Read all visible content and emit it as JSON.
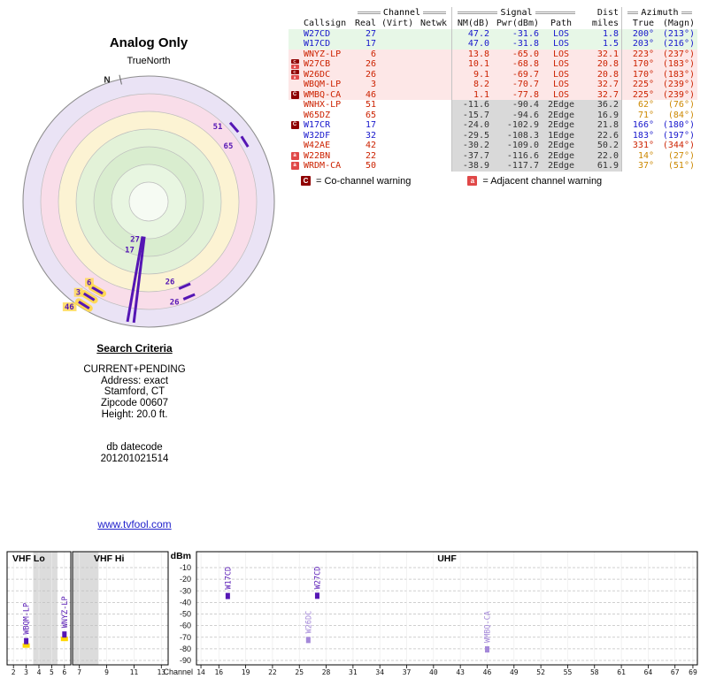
{
  "chart_data": [
    {
      "type": "radar",
      "title": "Analog Only",
      "north_label": "TrueNorth",
      "n_marker": "N",
      "declination_deg": 13,
      "tick_color": "#5516b4",
      "highlight_color": "#ffd957",
      "rings": [
        {
          "r": 142,
          "fill": "#eae3f5"
        },
        {
          "r": 122,
          "fill": "#f9dde9"
        },
        {
          "r": 102,
          "fill": "#fcf3d3"
        },
        {
          "r": 82,
          "fill": "#e3f2d8"
        },
        {
          "r": 62,
          "fill": "#d9edcf"
        },
        {
          "r": 42,
          "fill": "#e8f6e1"
        },
        {
          "r": 22,
          "fill": "#f6fbf3"
        }
      ],
      "stations": [
        {
          "label": "51",
          "az": 62,
          "kind": "tick",
          "r": 128,
          "lx": -24,
          "ly": 2,
          "highlight": false
        },
        {
          "label": "65",
          "az": 71,
          "kind": "tick",
          "r": 128,
          "lx": -24,
          "ly": 8,
          "highlight": false
        },
        {
          "label": "27",
          "az": 200,
          "kind": "line",
          "r1": 40,
          "r2": 138,
          "lx": -16,
          "ly": 6,
          "highlight": false
        },
        {
          "label": "17",
          "az": 203,
          "kind": "line",
          "r1": 40,
          "r2": 138,
          "lx": -20,
          "ly": 18,
          "highlight": false
        },
        {
          "label": "26",
          "az": 170,
          "kind": "tick",
          "r": 104,
          "lx": -22,
          "ly": -2,
          "highlight": false
        },
        {
          "label": "26",
          "az": 170,
          "kind": "tick",
          "r": 117,
          "lx": -22,
          "ly": 9,
          "highlight": false
        },
        {
          "label": "6",
          "az": 223,
          "kind": "tick",
          "r": 116,
          "lx": -12,
          "ly": -6,
          "highlight": true
        },
        {
          "label": "3",
          "az": 225,
          "kind": "tick",
          "r": 127,
          "lx": -15,
          "ly": -2,
          "highlight": true
        },
        {
          "label": "46",
          "az": 225,
          "kind": "tick",
          "r": 138,
          "lx": -22,
          "ly": 5,
          "highlight": true
        }
      ]
    },
    {
      "type": "bar",
      "ylabel": "dBm",
      "xlabel": "Channel",
      "ylim": [
        -90,
        -10
      ],
      "y_ticks": [
        -10,
        -20,
        -30,
        -40,
        -50,
        -60,
        -70,
        -80,
        -90
      ],
      "bar_color_strong": "#5516b4",
      "bar_color_weak": "#a488d9",
      "highlight_color": "#ffd700",
      "panels": [
        {
          "name": "VHF Lo",
          "x0": 8,
          "x1": 80,
          "c0": 1.5,
          "c1": 6.5,
          "ticks": [
            2,
            3,
            4,
            5,
            6
          ],
          "gray": [
            [
              3.55,
              5.45
            ]
          ]
        },
        {
          "name": "VHF Hi",
          "x0": 82,
          "x1": 190,
          "c0": 6.5,
          "c1": 13.5,
          "ticks": [
            7,
            9,
            11,
            13
          ],
          "gray": [
            [
              6.5,
              8.4
            ]
          ]
        },
        {
          "name": "UHF",
          "x0": 222,
          "x1": 788,
          "c0": 13.5,
          "c1": 69.5,
          "ticks": [
            14,
            16,
            19,
            22,
            25,
            28,
            31,
            34,
            37,
            40,
            43,
            46,
            49,
            52,
            55,
            58,
            61,
            64,
            67,
            69
          ],
          "gray": []
        }
      ],
      "points": [
        {
          "callsign": "WBQM-LP",
          "channel": 3,
          "dbm": -70.7,
          "panel": 0,
          "strong": true,
          "highlight": true
        },
        {
          "callsign": "WNYZ-LP",
          "channel": 6,
          "dbm": -65.0,
          "panel": 0,
          "strong": true,
          "highlight": true
        },
        {
          "callsign": "W17CD",
          "channel": 17,
          "dbm": -31.8,
          "panel": 2,
          "strong": true,
          "highlight": false
        },
        {
          "callsign": "W26DC",
          "channel": 26,
          "dbm": -69.7,
          "panel": 2,
          "strong": false,
          "highlight": false
        },
        {
          "callsign": "W27CD",
          "channel": 27,
          "dbm": -31.6,
          "panel": 2,
          "strong": true,
          "highlight": false
        },
        {
          "callsign": "WMBQ-CA",
          "channel": 46,
          "dbm": -77.8,
          "panel": 2,
          "strong": false,
          "highlight": false
        }
      ]
    }
  ],
  "table": {
    "groups": {
      "channel": "Channel",
      "signal": "Signal",
      "dist": "Dist",
      "azimuth": "Azimuth"
    },
    "columns": [
      "Callsign",
      "Real",
      "(Virt)",
      "Netwk",
      "NM(dB)",
      "Pwr(dBm)",
      "Path",
      "miles",
      "True",
      "(Magn)"
    ],
    "rows": [
      {
        "callsign": "W27CD",
        "real": "27",
        "virt": "",
        "netwk": "",
        "nm": "47.2",
        "pwr": "-31.6",
        "path": "LOS",
        "miles": "1.8",
        "true": "200°",
        "magn": "(213°)",
        "badges": [],
        "tone": "green",
        "fg": "#1717cc",
        "val_fg": "#1717cc",
        "az_fg": "#1717cc"
      },
      {
        "callsign": "W17CD",
        "real": "17",
        "virt": "",
        "netwk": "",
        "nm": "47.0",
        "pwr": "-31.8",
        "path": "LOS",
        "miles": "1.5",
        "true": "203°",
        "magn": "(216°)",
        "badges": [],
        "tone": "green",
        "fg": "#1717cc",
        "val_fg": "#1717cc",
        "az_fg": "#1717cc"
      },
      {
        "callsign": "WNYZ-LP",
        "real": "6",
        "virt": "",
        "netwk": "",
        "nm": "13.8",
        "pwr": "-65.0",
        "path": "LOS",
        "miles": "32.1",
        "true": "223°",
        "magn": "(237°)",
        "badges": [],
        "tone": "pink",
        "fg": "#cc2200",
        "val_fg": "#cc2200",
        "az_fg": "#cc2200"
      },
      {
        "callsign": "W27CB",
        "real": "26",
        "virt": "",
        "netwk": "",
        "nm": "10.1",
        "pwr": "-68.8",
        "path": "LOS",
        "miles": "20.8",
        "true": "170°",
        "magn": "(183°)",
        "badges": [
          "C",
          "a"
        ],
        "tone": "pink",
        "fg": "#cc2200",
        "val_fg": "#cc2200",
        "az_fg": "#cc2200"
      },
      {
        "callsign": "W26DC",
        "real": "26",
        "virt": "",
        "netwk": "",
        "nm": "9.1",
        "pwr": "-69.7",
        "path": "LOS",
        "miles": "20.8",
        "true": "170°",
        "magn": "(183°)",
        "badges": [
          "C",
          "a"
        ],
        "tone": "pink",
        "fg": "#cc2200",
        "val_fg": "#cc2200",
        "az_fg": "#cc2200"
      },
      {
        "callsign": "WBQM-LP",
        "real": "3",
        "virt": "",
        "netwk": "",
        "nm": "8.2",
        "pwr": "-70.7",
        "path": "LOS",
        "miles": "32.7",
        "true": "225°",
        "magn": "(239°)",
        "badges": [],
        "tone": "pink",
        "fg": "#cc2200",
        "val_fg": "#cc2200",
        "az_fg": "#cc2200"
      },
      {
        "callsign": "WMBQ-CA",
        "real": "46",
        "virt": "",
        "netwk": "",
        "nm": "1.1",
        "pwr": "-77.8",
        "path": "LOS",
        "miles": "32.7",
        "true": "225°",
        "magn": "(239°)",
        "badges": [
          "C"
        ],
        "tone": "pink",
        "fg": "#cc2200",
        "val_fg": "#cc2200",
        "az_fg": "#cc2200"
      },
      {
        "callsign": "WNHX-LP",
        "real": "51",
        "virt": "",
        "netwk": "",
        "nm": "-11.6",
        "pwr": "-90.4",
        "path": "2Edge",
        "miles": "36.2",
        "true": "62°",
        "magn": "(76°)",
        "badges": [],
        "tone": "gray",
        "fg": "#cc2200",
        "val_fg": "#333333",
        "az_fg": "#cc8800"
      },
      {
        "callsign": "W65DZ",
        "real": "65",
        "virt": "",
        "netwk": "",
        "nm": "-15.7",
        "pwr": "-94.6",
        "path": "2Edge",
        "miles": "16.9",
        "true": "71°",
        "magn": "(84°)",
        "badges": [],
        "tone": "gray",
        "fg": "#cc2200",
        "val_fg": "#333333",
        "az_fg": "#cc8800"
      },
      {
        "callsign": "W17CR",
        "real": "17",
        "virt": "",
        "netwk": "",
        "nm": "-24.0",
        "pwr": "-102.9",
        "path": "2Edge",
        "miles": "21.8",
        "true": "166°",
        "magn": "(180°)",
        "badges": [
          "C"
        ],
        "tone": "gray",
        "fg": "#1717cc",
        "val_fg": "#333333",
        "az_fg": "#1717cc"
      },
      {
        "callsign": "W32DF",
        "real": "32",
        "virt": "",
        "netwk": "",
        "nm": "-29.5",
        "pwr": "-108.3",
        "path": "1Edge",
        "miles": "22.6",
        "true": "183°",
        "magn": "(197°)",
        "badges": [],
        "tone": "gray",
        "fg": "#1717cc",
        "val_fg": "#333333",
        "az_fg": "#1717cc"
      },
      {
        "callsign": "W42AE",
        "real": "42",
        "virt": "",
        "netwk": "",
        "nm": "-30.2",
        "pwr": "-109.0",
        "path": "2Edge",
        "miles": "50.2",
        "true": "331°",
        "magn": "(344°)",
        "badges": [],
        "tone": "gray",
        "fg": "#cc2200",
        "val_fg": "#333333",
        "az_fg": "#cc2200"
      },
      {
        "callsign": "W22BN",
        "real": "22",
        "virt": "",
        "netwk": "",
        "nm": "-37.7",
        "pwr": "-116.6",
        "path": "2Edge",
        "miles": "22.0",
        "true": "14°",
        "magn": "(27°)",
        "badges": [
          "a"
        ],
        "tone": "gray",
        "fg": "#cc2200",
        "val_fg": "#333333",
        "az_fg": "#cc8800"
      },
      {
        "callsign": "WRDM-CA",
        "real": "50",
        "virt": "",
        "netwk": "",
        "nm": "-38.9",
        "pwr": "-117.7",
        "path": "2Edge",
        "miles": "61.9",
        "true": "37°",
        "magn": "(51°)",
        "badges": [
          "a"
        ],
        "tone": "gray",
        "fg": "#cc2200",
        "val_fg": "#333333",
        "az_fg": "#cc8800"
      }
    ]
  },
  "legend": {
    "co": "C",
    "co_text": "= Co-channel warning",
    "adj": "a",
    "adj_text": "= Adjacent channel warning"
  },
  "search": {
    "title": "Search Criteria",
    "lines": [
      "CURRENT+PENDING",
      "Address: exact",
      "Stamford, CT",
      "Zipcode 00607",
      "Height: 20.0 ft."
    ],
    "datecode_label": "db datecode",
    "datecode": "201201021514"
  },
  "link": "www.tvfool.com"
}
